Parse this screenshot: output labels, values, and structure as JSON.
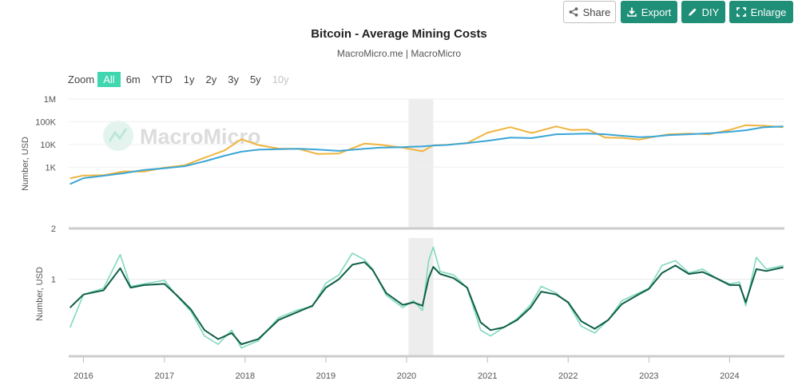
{
  "toolbar": {
    "share_label": "Share",
    "export_label": "Export",
    "diy_label": "DIY",
    "enlarge_label": "Enlarge"
  },
  "header": {
    "title": "Bitcoin - Average Mining Costs",
    "subtitle": "MacroMicro.me | MacroMicro"
  },
  "zoom": {
    "label": "Zoom",
    "options": [
      "All",
      "6m",
      "YTD",
      "1y",
      "2y",
      "3y",
      "5y",
      "10y"
    ],
    "active": "All",
    "disabled": [
      "10y"
    ]
  },
  "watermark": "MacroMicro",
  "colors": {
    "accent": "#1f8f77",
    "zoom_active": "#3fd6b0",
    "price_line": "#f0b43c",
    "cost_line": "#3aa6d6",
    "ratio_light": "#7fd9bd",
    "ratio_dark": "#0f5f48",
    "shade": "#ededed"
  },
  "chart_data": [
    {
      "type": "line",
      "panel": "top",
      "ylabel": "Number, USD",
      "yscale": "log",
      "ylim": [
        2,
        1000000
      ],
      "ytick_labels": [
        "1M",
        "100K",
        "10K",
        "1K",
        "2"
      ],
      "shaded_range": [
        "2020-01-10",
        "2020-05-01"
      ],
      "series": [
        {
          "color": "#f0b43c",
          "x": [
            "2015-11-01",
            "2016-01-01",
            "2016-04-01",
            "2016-07-01",
            "2016-10-01",
            "2017-01-01",
            "2017-04-01",
            "2017-07-01",
            "2017-10-01",
            "2017-12-15",
            "2018-03-01",
            "2018-06-01",
            "2018-09-01",
            "2018-11-25",
            "2019-03-01",
            "2019-06-25",
            "2019-09-01",
            "2019-12-15",
            "2020-03-13",
            "2020-05-01",
            "2020-07-01",
            "2020-10-01",
            "2021-01-01",
            "2021-04-14",
            "2021-07-20",
            "2021-11-08",
            "2022-01-15",
            "2022-04-01",
            "2022-06-18",
            "2022-09-01",
            "2022-11-21",
            "2023-01-15",
            "2023-04-01",
            "2023-07-01",
            "2023-10-01",
            "2024-01-01",
            "2024-03-14",
            "2024-06-01",
            "2024-08-31"
          ],
          "values": [
            320,
            430,
            440,
            650,
            640,
            950,
            1200,
            2600,
            5500,
            17000,
            9500,
            6600,
            6400,
            3800,
            4000,
            11000,
            9800,
            7200,
            5000,
            9200,
            9700,
            11500,
            33000,
            58000,
            32000,
            62000,
            43000,
            45000,
            20000,
            19500,
            16400,
            21000,
            28000,
            30000,
            28000,
            44000,
            70000,
            67000,
            58000
          ]
        },
        {
          "color": "#3aa6d6",
          "x": [
            "2015-11-01",
            "2016-01-01",
            "2016-04-01",
            "2016-07-01",
            "2016-10-01",
            "2017-01-01",
            "2017-04-01",
            "2017-07-01",
            "2017-10-01",
            "2017-12-15",
            "2018-03-01",
            "2018-06-01",
            "2018-09-01",
            "2018-11-25",
            "2019-03-01",
            "2019-06-25",
            "2019-09-01",
            "2019-12-15",
            "2020-03-13",
            "2020-05-01",
            "2020-07-01",
            "2020-10-01",
            "2021-01-01",
            "2021-04-14",
            "2021-07-20",
            "2021-11-08",
            "2022-01-15",
            "2022-04-01",
            "2022-06-18",
            "2022-09-01",
            "2022-11-21",
            "2023-01-15",
            "2023-04-01",
            "2023-07-01",
            "2023-10-01",
            "2024-01-01",
            "2024-03-14",
            "2024-06-01",
            "2024-08-31"
          ],
          "values": [
            180,
            330,
            420,
            540,
            760,
            900,
            1100,
            1800,
            3200,
            4800,
            5900,
            6200,
            6500,
            6000,
            5200,
            6500,
            7200,
            7600,
            8200,
            8900,
            9500,
            11500,
            14500,
            20000,
            19000,
            28000,
            29000,
            30000,
            28000,
            24000,
            21000,
            22000,
            26000,
            28000,
            31000,
            36000,
            42000,
            57000,
            62000
          ]
        }
      ]
    },
    {
      "type": "line",
      "panel": "bottom",
      "ylabel": "Number, USD",
      "ytick_labels": [
        "1"
      ],
      "shaded_range": [
        "2020-01-10",
        "2020-05-01"
      ],
      "series": [
        {
          "color": "#7fd9bd",
          "x": [
            "2015-11-01",
            "2016-01-01",
            "2016-04-01",
            "2016-06-15",
            "2016-08-01",
            "2016-10-01",
            "2017-01-01",
            "2017-03-01",
            "2017-05-01",
            "2017-07-01",
            "2017-09-01",
            "2017-11-01",
            "2017-12-15",
            "2018-03-01",
            "2018-06-01",
            "2018-09-01",
            "2018-11-01",
            "2019-01-01",
            "2019-03-01",
            "2019-05-01",
            "2019-06-25",
            "2019-08-01",
            "2019-10-01",
            "2019-12-15",
            "2020-02-01",
            "2020-03-13",
            "2020-04-10",
            "2020-05-01",
            "2020-06-01",
            "2020-08-01",
            "2020-10-01",
            "2020-12-01",
            "2021-01-15",
            "2021-03-15",
            "2021-05-15",
            "2021-07-15",
            "2021-09-01",
            "2021-11-08",
            "2022-01-01",
            "2022-03-01",
            "2022-05-01",
            "2022-07-01",
            "2022-09-01",
            "2022-11-15",
            "2023-01-01",
            "2023-03-01",
            "2023-05-01",
            "2023-07-01",
            "2023-09-01",
            "2023-11-01",
            "2024-01-01",
            "2024-02-15",
            "2024-03-14",
            "2024-05-01",
            "2024-06-15",
            "2024-08-31"
          ],
          "values": [
            0.42,
            0.76,
            0.85,
            1.56,
            0.88,
            0.92,
            0.98,
            0.73,
            0.56,
            0.36,
            0.31,
            0.4,
            0.29,
            0.33,
            0.5,
            0.58,
            0.61,
            0.93,
            1.08,
            1.6,
            1.42,
            1.2,
            0.75,
            0.6,
            0.68,
            0.57,
            1.4,
            1.78,
            1.15,
            1.08,
            0.86,
            0.4,
            0.36,
            0.42,
            0.49,
            0.63,
            0.88,
            0.78,
            0.65,
            0.43,
            0.38,
            0.48,
            0.68,
            0.78,
            0.85,
            1.28,
            1.4,
            1.12,
            1.2,
            1.02,
            0.92,
            0.95,
            0.62,
            1.48,
            1.2,
            1.28
          ]
        },
        {
          "color": "#0f5f48",
          "x": [
            "2015-11-01",
            "2016-01-01",
            "2016-04-01",
            "2016-06-15",
            "2016-08-01",
            "2016-10-01",
            "2017-01-01",
            "2017-03-01",
            "2017-05-01",
            "2017-07-01",
            "2017-09-01",
            "2017-11-01",
            "2017-12-15",
            "2018-03-01",
            "2018-06-01",
            "2018-09-01",
            "2018-11-01",
            "2019-01-01",
            "2019-03-01",
            "2019-05-01",
            "2019-06-25",
            "2019-08-01",
            "2019-10-01",
            "2019-12-15",
            "2020-02-01",
            "2020-03-13",
            "2020-04-10",
            "2020-05-01",
            "2020-06-01",
            "2020-08-01",
            "2020-10-01",
            "2020-12-01",
            "2021-01-15",
            "2021-03-15",
            "2021-05-15",
            "2021-07-15",
            "2021-09-01",
            "2021-11-08",
            "2022-01-01",
            "2022-03-01",
            "2022-05-01",
            "2022-07-01",
            "2022-09-01",
            "2022-11-15",
            "2023-01-01",
            "2023-03-01",
            "2023-05-01",
            "2023-07-01",
            "2023-09-01",
            "2023-11-01",
            "2024-01-01",
            "2024-02-15",
            "2024-03-14",
            "2024-05-01",
            "2024-06-15",
            "2024-08-31"
          ],
          "values": [
            0.6,
            0.76,
            0.82,
            1.22,
            0.86,
            0.9,
            0.92,
            0.74,
            0.58,
            0.4,
            0.34,
            0.38,
            0.31,
            0.34,
            0.48,
            0.56,
            0.62,
            0.86,
            1.0,
            1.3,
            1.36,
            1.18,
            0.78,
            0.63,
            0.66,
            0.62,
            1.02,
            1.25,
            1.1,
            1.02,
            0.86,
            0.46,
            0.4,
            0.42,
            0.48,
            0.6,
            0.8,
            0.76,
            0.66,
            0.47,
            0.41,
            0.48,
            0.64,
            0.76,
            0.84,
            1.12,
            1.28,
            1.1,
            1.14,
            1.02,
            0.9,
            0.9,
            0.66,
            1.2,
            1.16,
            1.24
          ]
        }
      ]
    }
  ],
  "x_axis": {
    "tick_labels": [
      "2016",
      "2017",
      "2018",
      "2019",
      "2020",
      "2021",
      "2022",
      "2023",
      "2024"
    ]
  }
}
